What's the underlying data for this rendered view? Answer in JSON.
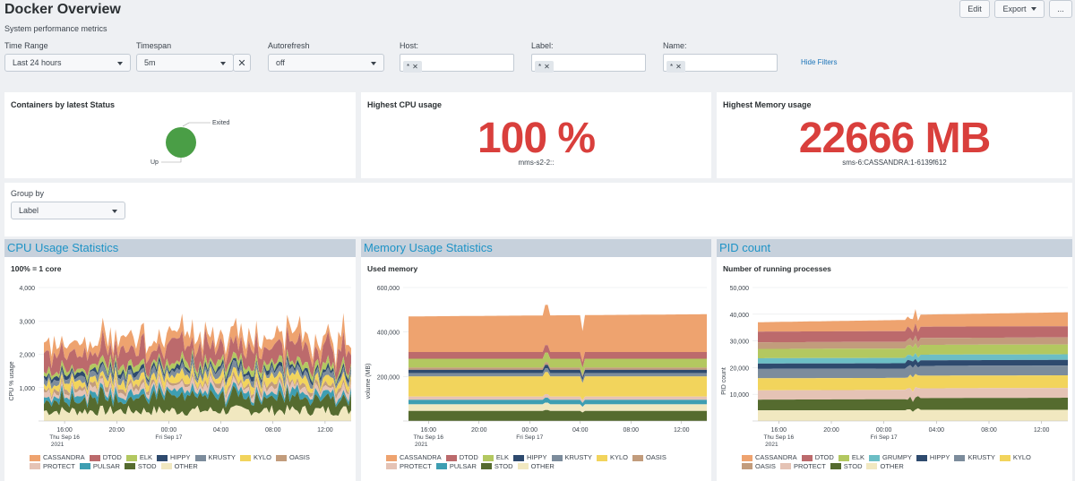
{
  "header": {
    "title": "Docker Overview",
    "description": "System performance metrics",
    "edit": "Edit",
    "export": "Export",
    "more": "..."
  },
  "filters": {
    "time_range": {
      "label": "Time Range",
      "value": "Last 24 hours"
    },
    "timespan": {
      "label": "Timespan",
      "value": "5m"
    },
    "autorefresh": {
      "label": "Autorefresh",
      "value": "off"
    },
    "host": {
      "label": "Host:",
      "token": "*"
    },
    "label": {
      "label": "Label:",
      "token": "*"
    },
    "name": {
      "label": "Name:",
      "token": "*"
    },
    "hide": "Hide Filters"
  },
  "status_panel": {
    "title": "Containers by latest Status",
    "slices": [
      {
        "label": "Exited",
        "value": 0.02
      },
      {
        "label": "Up",
        "value": 0.98
      }
    ],
    "color_up": "#4a9e46"
  },
  "cpu_panel": {
    "title": "Highest CPU usage",
    "value": "100 %",
    "sub": "mms-s2-2::"
  },
  "mem_panel": {
    "title": "Highest Memory usage",
    "value": "22666 MB",
    "sub": "sms-6:CASSANDRA:1-6139f612"
  },
  "group_by": {
    "label": "Group by",
    "value": "Label"
  },
  "colors": {
    "CASSANDRA": "#eea36f",
    "DTOD": "#bc6a6c",
    "ELK": "#b3c860",
    "HIPPY": "#2e4a6e",
    "KRUSTY": "#7c8c9c",
    "KYLO": "#f2d45c",
    "OASIS": "#c29c7c",
    "PROTECT": "#e5c3b5",
    "PULSAR": "#3e9eb2",
    "STOD": "#556b2f",
    "OTHER": "#f1e8c0",
    "GRUMPY": "#6cbec5"
  },
  "chart_data": [
    {
      "type": "area",
      "section": "CPU Usage Statistics",
      "title": "100% = 1 core",
      "ylabel": "CPU % usage",
      "ylim": [
        0,
        4000
      ],
      "yticks": [
        "4,000",
        "3,000",
        "2,000",
        "1,000"
      ],
      "xticks": [
        "16:00",
        "20:00",
        "00:00",
        "04:00",
        "08:00",
        "12:00"
      ],
      "xsub": [
        [
          "Thu Sep 16",
          "2021"
        ],
        [
          "Fri Sep 17",
          ""
        ]
      ],
      "x_hours": [
        14,
        38
      ],
      "series": [
        {
          "name": "OTHER",
          "values": [
            300,
            320
          ]
        },
        {
          "name": "STOD",
          "values": [
            400,
            420
          ]
        },
        {
          "name": "PULSAR",
          "values": [
            150,
            160
          ]
        },
        {
          "name": "PROTECT",
          "values": [
            150,
            150
          ]
        },
        {
          "name": "OASIS",
          "values": [
            100,
            100
          ]
        },
        {
          "name": "KYLO",
          "values": [
            200,
            210
          ]
        },
        {
          "name": "KRUSTY",
          "values": [
            150,
            150
          ]
        },
        {
          "name": "HIPPY",
          "values": [
            100,
            100
          ]
        },
        {
          "name": "ELK",
          "values": [
            150,
            150
          ]
        },
        {
          "name": "DTOD",
          "values": [
            500,
            520
          ]
        },
        {
          "name": "CASSANDRA",
          "values": [
            350,
            350
          ]
        }
      ],
      "legend": [
        "CASSANDRA",
        "DTOD",
        "ELK",
        "HIPPY",
        "KRUSTY",
        "KYLO",
        "OASIS",
        "PROTECT",
        "PULSAR",
        "STOD",
        "OTHER"
      ]
    },
    {
      "type": "area",
      "section": "Memory Usage Statistics",
      "title": "Used memory",
      "ylabel": "volume (MB)",
      "ylim": [
        0,
        600000
      ],
      "yticks": [
        "600,000",
        "400,000",
        "200,000"
      ],
      "xticks": [
        "16:00",
        "20:00",
        "00:00",
        "04:00",
        "08:00",
        "12:00"
      ],
      "xsub": [
        [
          "Thu Sep 16",
          "2021"
        ],
        [
          "Fri Sep 17",
          ""
        ]
      ],
      "x_hours": [
        14,
        38
      ],
      "series": [
        {
          "name": "STOD",
          "values": [
            45000,
            45000
          ]
        },
        {
          "name": "OTHER",
          "values": [
            30000,
            30000
          ]
        },
        {
          "name": "PULSAR",
          "values": [
            20000,
            20000
          ]
        },
        {
          "name": "PROTECT",
          "values": [
            15000,
            15000
          ]
        },
        {
          "name": "KYLO",
          "values": [
            90000,
            90000
          ]
        },
        {
          "name": "KRUSTY",
          "values": [
            15000,
            15000
          ]
        },
        {
          "name": "HIPPY",
          "values": [
            15000,
            15000
          ]
        },
        {
          "name": "OASIS",
          "values": [
            10000,
            10000
          ]
        },
        {
          "name": "ELK",
          "values": [
            40000,
            40000
          ]
        },
        {
          "name": "DTOD",
          "values": [
            30000,
            30000
          ]
        },
        {
          "name": "CASSANDRA",
          "values": [
            160000,
            170000
          ]
        }
      ],
      "legend": [
        "CASSANDRA",
        "DTOD",
        "ELK",
        "HIPPY",
        "KRUSTY",
        "KYLO",
        "OASIS",
        "PROTECT",
        "PULSAR",
        "STOD",
        "OTHER"
      ]
    },
    {
      "type": "area",
      "section": "PID count",
      "title": "Number of running processes",
      "ylabel": "PID count",
      "ylim": [
        0,
        50000
      ],
      "yticks": [
        "50,000",
        "40,000",
        "30,000",
        "20,000",
        "10,000"
      ],
      "xticks": [
        "16:00",
        "20:00",
        "00:00",
        "04:00",
        "08:00",
        "12:00"
      ],
      "xsub": [
        [
          "Thu Sep 16",
          "2021"
        ],
        [
          "Fri Sep 17",
          ""
        ]
      ],
      "x_hours": [
        14,
        38
      ],
      "series": [
        {
          "name": "OTHER",
          "values": [
            4000,
            4000
          ]
        },
        {
          "name": "STOD",
          "values": [
            4000,
            4300
          ]
        },
        {
          "name": "PROTECT",
          "values": [
            3500,
            3500
          ]
        },
        {
          "name": "KYLO",
          "values": [
            4500,
            4500
          ]
        },
        {
          "name": "KRUSTY",
          "values": [
            3500,
            3500
          ]
        },
        {
          "name": "HIPPY",
          "values": [
            2000,
            2000
          ]
        },
        {
          "name": "GRUMPY",
          "values": [
            2000,
            2000
          ]
        },
        {
          "name": "ELK",
          "values": [
            3500,
            3500
          ]
        },
        {
          "name": "OASIS",
          "values": [
            2500,
            2500
          ]
        },
        {
          "name": "DTOD",
          "values": [
            4000,
            4000
          ]
        },
        {
          "name": "CASSANDRA",
          "values": [
            3500,
            5000
          ]
        }
      ],
      "legend": [
        "CASSANDRA",
        "DTOD",
        "ELK",
        "GRUMPY",
        "HIPPY",
        "KRUSTY",
        "KYLO",
        "OASIS",
        "PROTECT",
        "STOD",
        "OTHER"
      ]
    }
  ]
}
